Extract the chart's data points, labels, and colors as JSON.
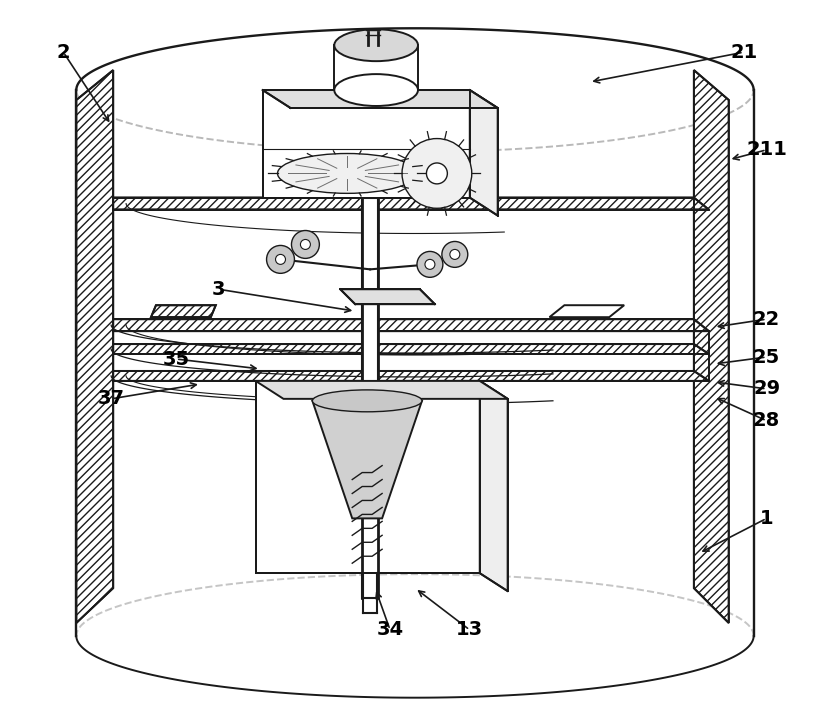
{
  "bg_color": "#ffffff",
  "line_color": "#1a1a1a",
  "lw": 1.4,
  "figsize": [
    8.22,
    7.19
  ],
  "dpi": 100
}
